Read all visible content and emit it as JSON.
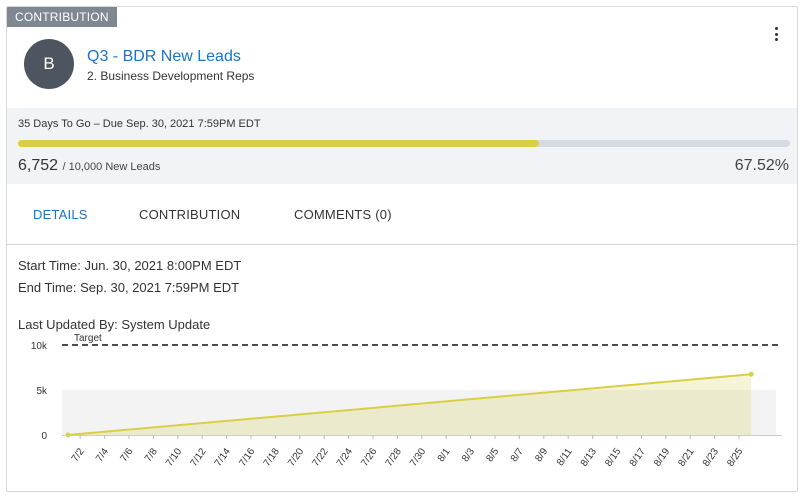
{
  "card": {
    "tag": "CONTRIBUTION",
    "avatar_initial": "B",
    "title": "Q3 - BDR New Leads",
    "subtitle": "2. Business Development Reps",
    "menu_icon": "kebab-vertical-icon"
  },
  "progress": {
    "due_text": "35 Days To Go – Due Sep. 30, 2021 7:59PM EDT",
    "current": "6,752",
    "target_text": "/ 10,000 New Leads",
    "percent_text": "67.52%",
    "fraction": 0.6752,
    "fill_color": "#d8cf47"
  },
  "tabs": [
    {
      "label": "DETAILS",
      "active": true
    },
    {
      "label": "CONTRIBUTION",
      "active": false
    },
    {
      "label": "COMMENTS (0)",
      "active": false
    }
  ],
  "details": {
    "start_time": "Start Time: Jun. 30, 2021 8:00PM EDT",
    "end_time": "End Time: Sep. 30, 2021 7:59PM EDT",
    "last_updated": "Last Updated By: System Update"
  },
  "chart_data": {
    "type": "area",
    "y_ticks": [
      "10k",
      "5k",
      "0"
    ],
    "ylim": [
      0,
      10000
    ],
    "target_label": "Target",
    "target_value": 10000,
    "x_ticks": [
      "7/2",
      "7/4",
      "7/6",
      "7/8",
      "7/10",
      "7/12",
      "7/14",
      "7/16",
      "7/18",
      "7/20",
      "7/22",
      "7/24",
      "7/26",
      "7/28",
      "7/30",
      "8/1",
      "8/3",
      "8/5",
      "8/7",
      "8/9",
      "8/11",
      "8/13",
      "8/15",
      "8/17",
      "8/19",
      "8/21",
      "8/23",
      "8/25"
    ],
    "series": [
      {
        "points": [
          {
            "x": "7/1",
            "y": 0
          },
          {
            "x": "8/26",
            "y": 6752
          }
        ],
        "color": "#d8cf47"
      }
    ],
    "grid": false
  }
}
